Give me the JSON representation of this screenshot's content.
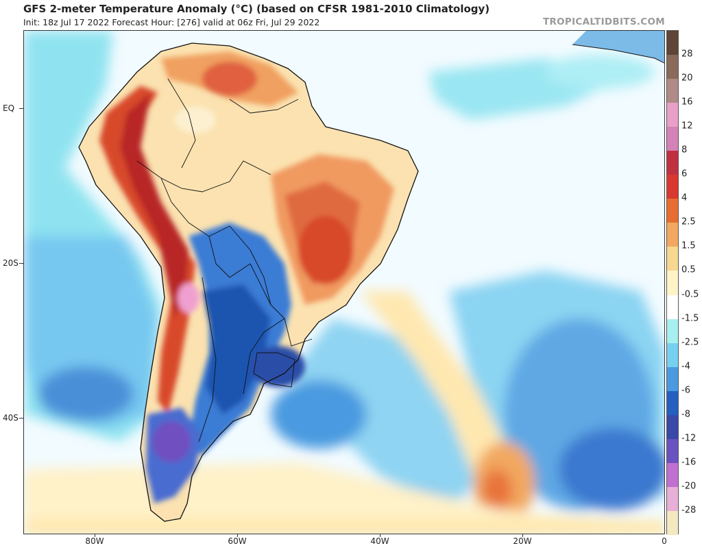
{
  "header": {
    "title": "GFS 2-meter Temperature Anomaly (°C) (based on CFSR 1981-2010 Climatology)",
    "subtitle": "Init: 18z Jul 17 2022   Forecast Hour: [276]   valid at 06z Fri, Jul 29 2022",
    "credit": "TROPICALTIDBITS.COM"
  },
  "axes": {
    "lat_labels": [
      "EQ",
      "20S",
      "40S"
    ],
    "lon_labels": [
      "80W",
      "60W",
      "40W",
      "20W",
      "0"
    ]
  },
  "colorbar": {
    "labels": [
      "28",
      "20",
      "16",
      "12",
      "8",
      "6",
      "4",
      "2.5",
      "1.5",
      "0.5",
      "-0.5",
      "-1.5",
      "-2.5",
      "-4",
      "-6",
      "-8",
      "-12",
      "-16",
      "-20",
      "-28"
    ],
    "colors": [
      "#5e4535",
      "#8a6a5a",
      "#b08a86",
      "#e8a0c8",
      "#d483b8",
      "#c03040",
      "#d83830",
      "#e86d30",
      "#f2a860",
      "#f8d890",
      "#fff3c8",
      "#ffffff",
      "#a8f0f0",
      "#78d0f0",
      "#4a9ae0",
      "#2560c0",
      "#3a48a8",
      "#6a52c0",
      "#c070d0",
      "#e8b0d8",
      "#f4e8c0"
    ]
  }
}
